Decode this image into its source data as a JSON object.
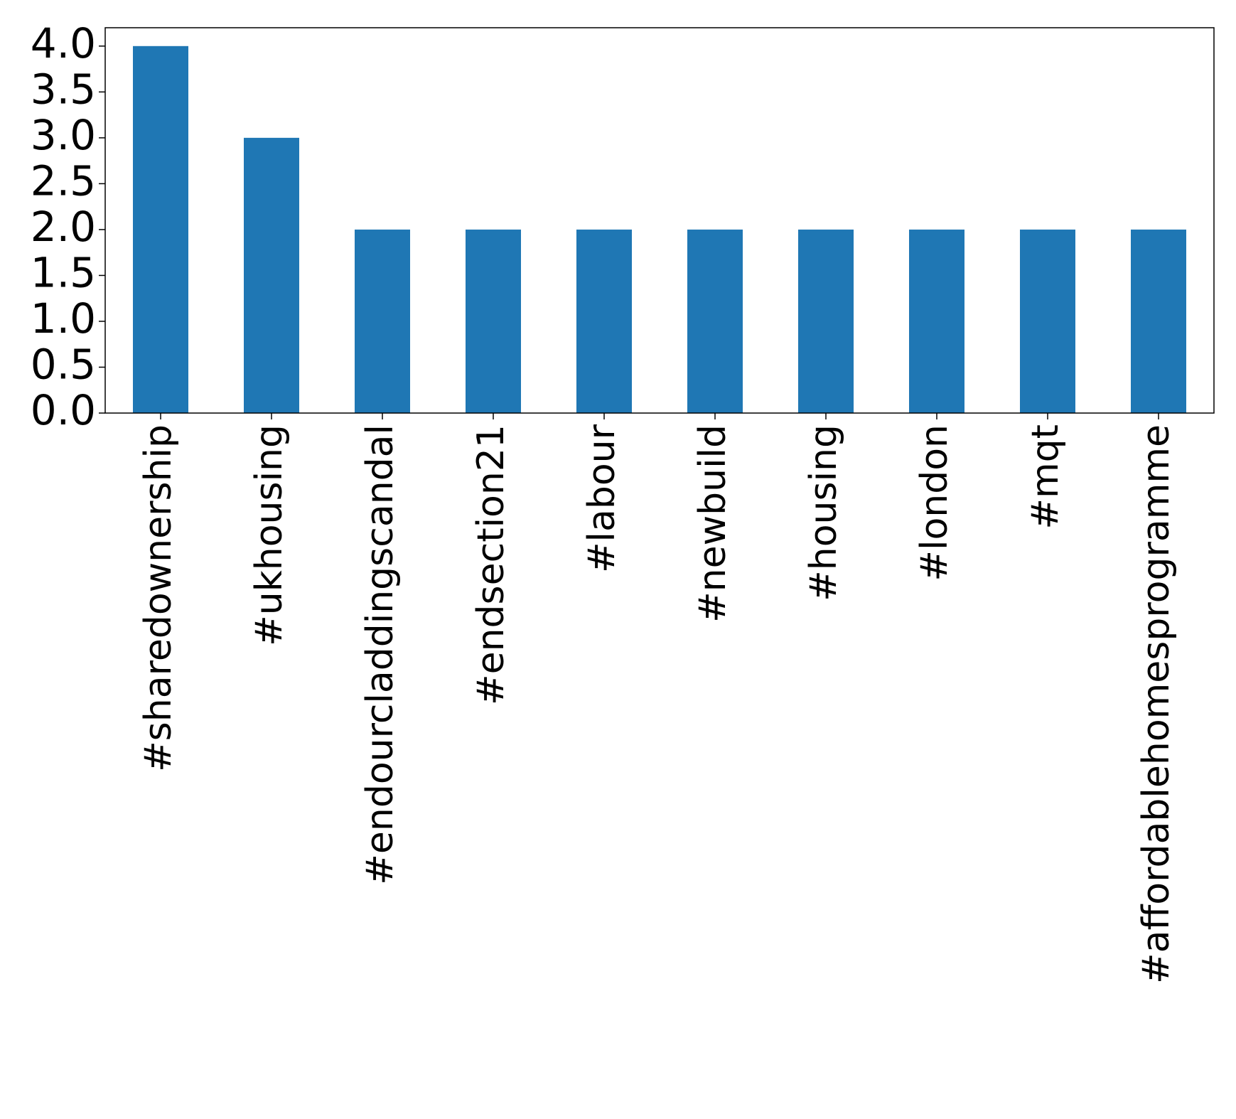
{
  "chart_data": {
    "type": "bar",
    "categories": [
      "#sharedownership",
      "#ukhousing",
      "#endourcladdingscandal",
      "#endsection21",
      "#labour",
      "#newbuild",
      "#housing",
      "#london",
      "#mqt",
      "#affordablehomesprogramme"
    ],
    "values": [
      4,
      3,
      2,
      2,
      2,
      2,
      2,
      2,
      2,
      2
    ],
    "color": "#1f77b4",
    "ylim": [
      0,
      4.2
    ],
    "yticks": [
      {
        "value": 0,
        "label": "0.0"
      },
      {
        "value": 0.5,
        "label": "0.5"
      },
      {
        "value": 1,
        "label": "1.0"
      },
      {
        "value": 1.5,
        "label": "1.5"
      },
      {
        "value": 2,
        "label": "2.0"
      },
      {
        "value": 2.5,
        "label": "2.5"
      },
      {
        "value": 3,
        "label": "3.0"
      },
      {
        "value": 3.5,
        "label": "3.5"
      },
      {
        "value": 4,
        "label": "4.0"
      }
    ],
    "grid": false
  }
}
